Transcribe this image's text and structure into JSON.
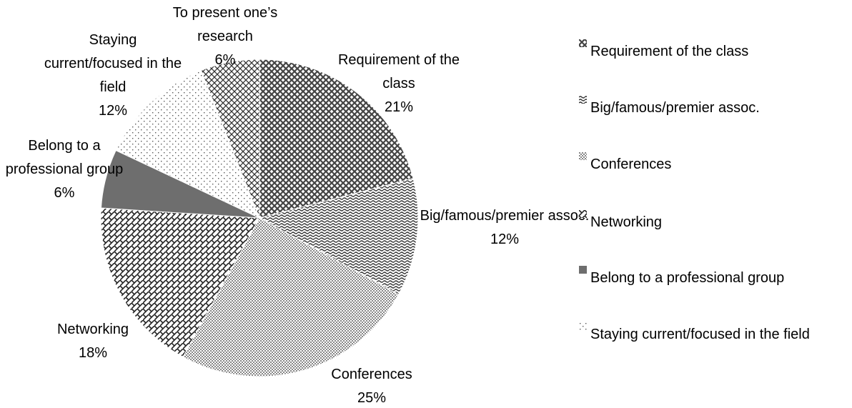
{
  "chart_data": {
    "type": "pie",
    "categories": [
      "Requirement of the class",
      "Big/famous/premier assoc.",
      "Conferences",
      "Networking",
      "Belong to a professional group",
      "Staying current/focused in the field",
      "To present one’s research"
    ],
    "values": [
      21,
      12,
      25,
      18,
      6,
      12,
      6
    ],
    "value_labels": [
      "21%",
      "12%",
      "25%",
      "18%",
      "6%",
      "12%",
      "6%"
    ],
    "colors": [
      "#444444",
      "#333333",
      "#888888",
      "#222222",
      "#6e6e6e",
      "#555555",
      "#333333"
    ],
    "legend": [
      "Requirement of the class",
      "Big/famous/premier assoc.",
      "Conferences",
      "Networking",
      "Belong to a professional group",
      "Staying current/focused in the field"
    ]
  }
}
